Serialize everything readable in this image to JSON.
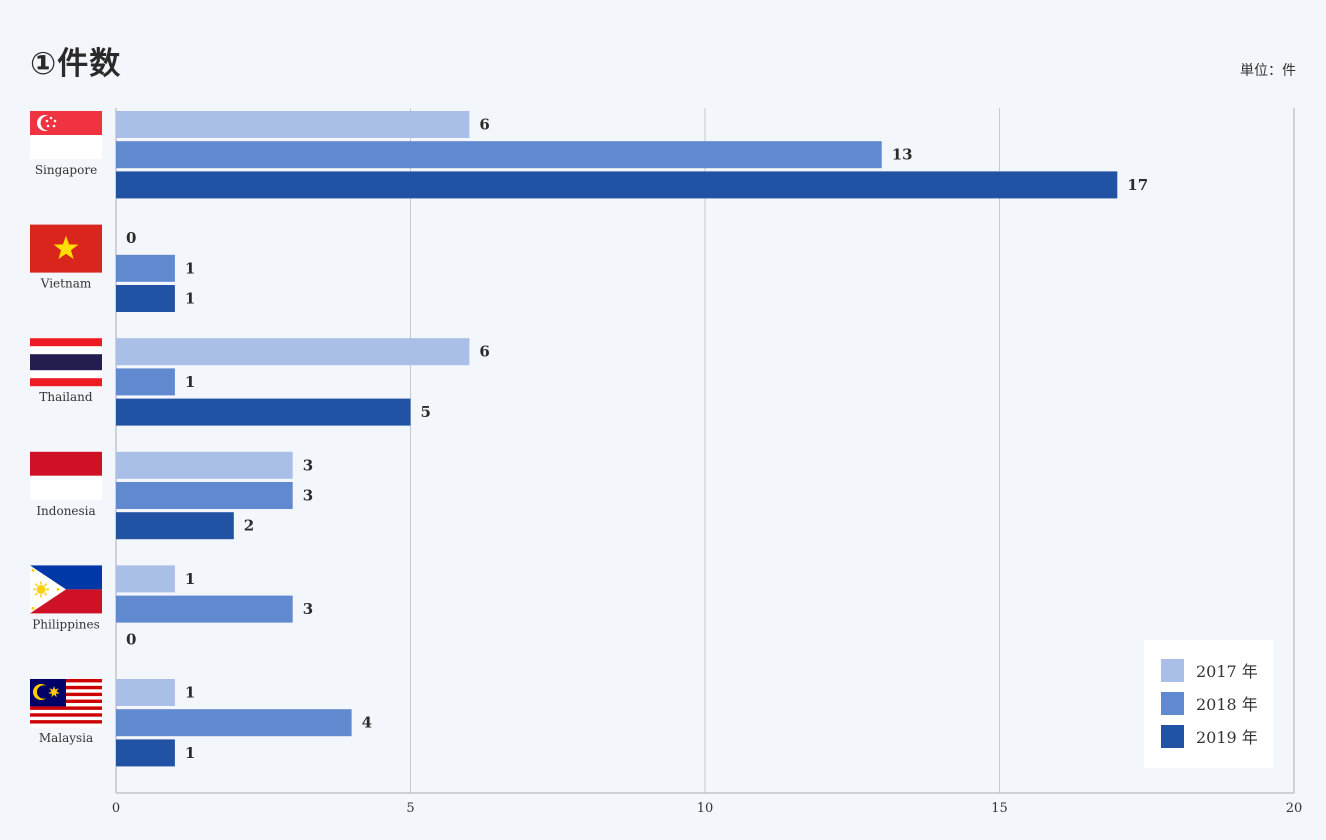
{
  "title": "①件数",
  "unit_label": "単位：件",
  "colors": {
    "s2017": "#aabfe8",
    "s2018": "#6089cf",
    "s2019": "#2252a4",
    "grid": "#c4c8cf",
    "axis": "#a9aeb6"
  },
  "chart_data": {
    "type": "bar",
    "orientation": "horizontal",
    "categories": [
      "Singapore",
      "Vietnam",
      "Thailand",
      "Indonesia",
      "Philippines",
      "Malaysia"
    ],
    "series": [
      {
        "name": "2017 年",
        "values": [
          6,
          0,
          6,
          3,
          1,
          1
        ]
      },
      {
        "name": "2018 年",
        "values": [
          13,
          1,
          1,
          3,
          3,
          4
        ]
      },
      {
        "name": "2019 年",
        "values": [
          17,
          1,
          5,
          2,
          0,
          1
        ]
      }
    ],
    "xlim": [
      0,
      20
    ],
    "xticks": [
      0,
      5,
      10,
      15,
      20
    ],
    "grid": true,
    "legend_position": "bottom-right",
    "flag_icons": [
      "singapore-flag-icon",
      "vietnam-flag-icon",
      "thailand-flag-icon",
      "indonesia-flag-icon",
      "philippines-flag-icon",
      "malaysia-flag-icon"
    ]
  }
}
